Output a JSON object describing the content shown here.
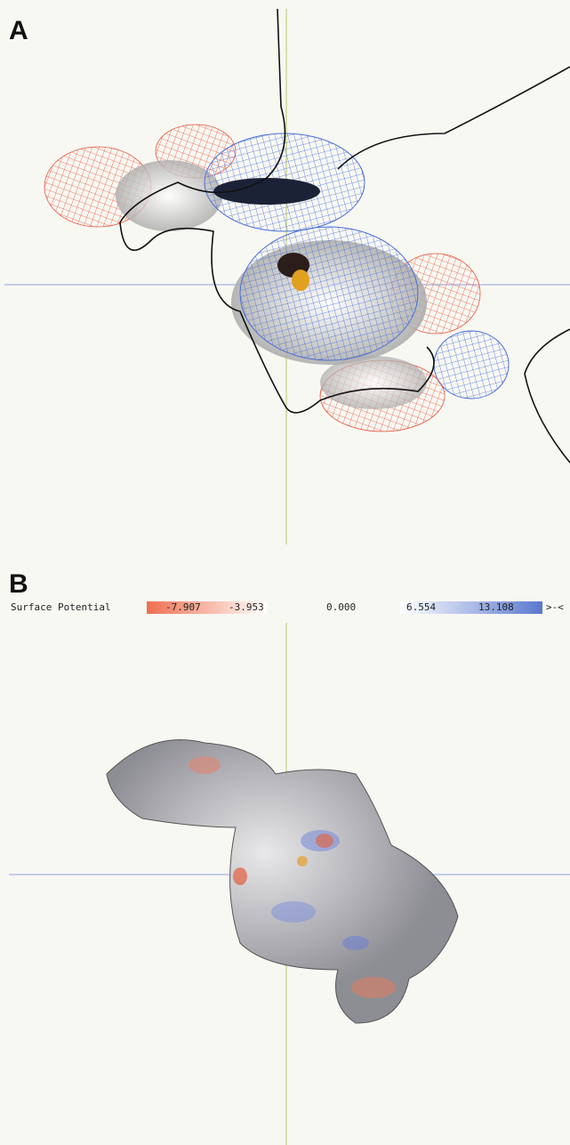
{
  "panels": [
    {
      "label": "A"
    },
    {
      "label": "B",
      "color_scale": {
        "title": "Surface Potential",
        "stops": [
          "-7.907",
          "-3.953",
          "0.000",
          "6.554",
          "13.108"
        ],
        "end_marker": ">-<"
      }
    }
  ]
}
